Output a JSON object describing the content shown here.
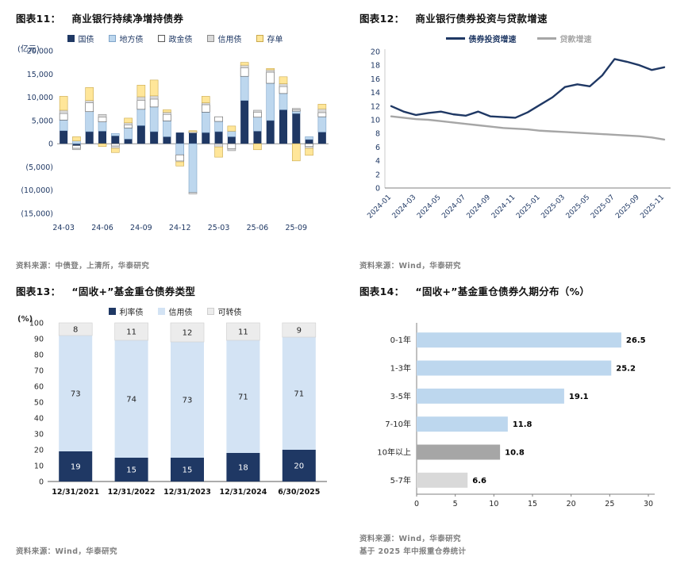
{
  "panels": [
    {
      "label": "图表11：",
      "title": "商业银行持续净增持债券",
      "source": "资料来源：中债登，上清所，华泰研究"
    },
    {
      "label": "图表12：",
      "title": "商业银行债券投资与贷款增速",
      "source": "资料来源：Wind，华泰研究"
    },
    {
      "label": "图表13：",
      "title": "“固收+”基金重仓债券类型",
      "source": "资料来源：Wind，华泰研究"
    },
    {
      "label": "图表14：",
      "title": "“固收+”基金重仓债券久期分布（%）",
      "source": "资料来源：Wind，华泰研究",
      "source2": "基于 2025 年中报重仓券统计"
    }
  ],
  "colors": {
    "navy": "#1F3864",
    "light_blue": "#BDD7EE",
    "pale_blue": "#D3E3F4",
    "light_gray": "#D9D9D9",
    "mid_gray": "#A6A6A6",
    "pale_gray": "#ECECEC",
    "yellow": "#FFE699",
    "source_gray": "#7F7F7F"
  },
  "chart_data": [
    {
      "id": "fig11",
      "type": "bar",
      "subtype": "stacked_vertical",
      "title": "商业银行持续净增持债券",
      "unit_label": "(亿元)",
      "ylim": [
        -15000,
        20000
      ],
      "ytick_step": 5000,
      "grid": false,
      "legend_position": "top",
      "legend_swatch": "square",
      "legend_text_color": "#1F3864",
      "tick_every": 3,
      "categories": [
        "24-03",
        "24-04",
        "24-05",
        "24-06",
        "24-07",
        "24-08",
        "24-09",
        "24-10",
        "24-11",
        "24-12",
        "25-01",
        "25-02",
        "25-03",
        "25-04",
        "25-05",
        "25-06",
        "25-07",
        "25-08",
        "25-09",
        "25-10",
        "25-11"
      ],
      "series": [
        {
          "name": "国债",
          "color": "#1F3864",
          "values": [
            2800,
            -400,
            2600,
            2700,
            1700,
            1000,
            3900,
            2600,
            1500,
            2400,
            2300,
            2400,
            2600,
            1500,
            9300,
            2700,
            5000,
            7300,
            6500,
            900,
            2500
          ]
        },
        {
          "name": "地方债",
          "color": "#BDD7EE",
          "stroke": "#7FA4C9",
          "values": [
            2300,
            600,
            4300,
            2000,
            500,
            2400,
            3500,
            5300,
            3400,
            -2400,
            -10500,
            4400,
            2200,
            1200,
            5200,
            3000,
            8000,
            3500,
            500,
            600,
            3300
          ]
        },
        {
          "name": "政金债",
          "color": "#FFFFFF",
          "stroke": "#595959",
          "values": [
            1400,
            -600,
            1900,
            1000,
            -500,
            600,
            1900,
            1700,
            1400,
            -1300,
            300,
            1600,
            1000,
            -1100,
            1800,
            1100,
            2400,
            1500,
            300,
            -600,
            900
          ]
        },
        {
          "name": "信用债",
          "color": "#D9D9D9",
          "stroke": "#8C8C8C",
          "values": [
            700,
            -300,
            500,
            600,
            -500,
            500,
            800,
            700,
            500,
            -200,
            -300,
            400,
            -700,
            -400,
            600,
            400,
            500,
            600,
            300,
            -400,
            800
          ]
        },
        {
          "name": "存单",
          "color": "#FFE699",
          "stroke": "#C9A94E",
          "values": [
            3000,
            900,
            2800,
            -600,
            -900,
            1000,
            2500,
            3400,
            500,
            -900,
            200,
            1400,
            -2200,
            1100,
            600,
            -1300,
            300,
            1500,
            -3700,
            -1500,
            1000
          ]
        }
      ]
    },
    {
      "id": "fig12",
      "type": "line",
      "subtype": "multi_line",
      "title": "商业银行债券投资与贷款增速",
      "ylim": [
        0,
        20
      ],
      "ytick_step": 2,
      "grid": false,
      "legend_position": "top",
      "legend_swatch": "line",
      "legend_text_color": "series",
      "tick_every": 2,
      "categories": [
        "2024-01",
        "2024-02",
        "2024-03",
        "2024-04",
        "2024-05",
        "2024-06",
        "2024-07",
        "2024-08",
        "2024-09",
        "2024-10",
        "2024-11",
        "2024-12",
        "2025-01",
        "2025-02",
        "2025-03",
        "2025-04",
        "2025-05",
        "2025-06",
        "2025-07",
        "2025-08",
        "2025-09",
        "2025-10",
        "2025-11"
      ],
      "series": [
        {
          "name": "债券投资增速",
          "color": "#1F3864",
          "values": [
            12.0,
            11.2,
            10.7,
            11.0,
            11.2,
            10.8,
            10.6,
            11.2,
            10.5,
            10.4,
            10.3,
            11.1,
            12.2,
            13.3,
            14.8,
            15.2,
            14.9,
            16.5,
            18.9,
            18.5,
            18.0,
            17.3,
            17.7
          ]
        },
        {
          "name": "贷款增速",
          "color": "#A6A6A6",
          "values": [
            10.5,
            10.3,
            10.1,
            10.0,
            9.8,
            9.6,
            9.4,
            9.2,
            9.0,
            8.8,
            8.7,
            8.6,
            8.4,
            8.3,
            8.2,
            8.1,
            8.0,
            7.9,
            7.8,
            7.7,
            7.6,
            7.4,
            7.1
          ]
        }
      ]
    },
    {
      "id": "fig13",
      "type": "bar",
      "subtype": "percent_stacked",
      "title": "“固收+”基金重仓债券类型",
      "unit_label": "(%)",
      "ylim": [
        0,
        100
      ],
      "ytick_step": 10,
      "grid": false,
      "legend_position": "top",
      "legend_swatch": "square",
      "legend_text_color": "#262626",
      "categories": [
        "12/31/2021",
        "12/31/2022",
        "12/31/2023",
        "12/31/2024",
        "6/30/2025"
      ],
      "series": [
        {
          "name": "利率债",
          "color": "#1F3864",
          "label_color": "#FFFFFF",
          "values": [
            19,
            15,
            15,
            18,
            20
          ]
        },
        {
          "name": "信用债",
          "color": "#D3E3F4",
          "label_color": "#1F1F1F",
          "values": [
            73,
            74,
            73,
            71,
            71
          ]
        },
        {
          "name": "可转债",
          "color": "#ECECEC",
          "stroke": "#CFCFCF",
          "label_color": "#1F1F1F",
          "values": [
            8,
            11,
            12,
            11,
            9
          ]
        }
      ]
    },
    {
      "id": "fig14",
      "type": "bar",
      "subtype": "horizontal",
      "title": "“固收+”基金重仓债券久期分布（%）",
      "xlim": [
        0,
        30
      ],
      "xtick_step": 5,
      "grid": false,
      "categories": [
        "0-1年",
        "1-3年",
        "3-5年",
        "7-10年",
        "10年以上",
        "5-7年"
      ],
      "values": [
        26.5,
        25.2,
        19.1,
        11.8,
        10.8,
        6.6
      ],
      "colors": [
        "#BDD7EE",
        "#BDD7EE",
        "#BDD7EE",
        "#BDD7EE",
        "#A6A6A6",
        "#D9D9D9"
      ]
    }
  ]
}
